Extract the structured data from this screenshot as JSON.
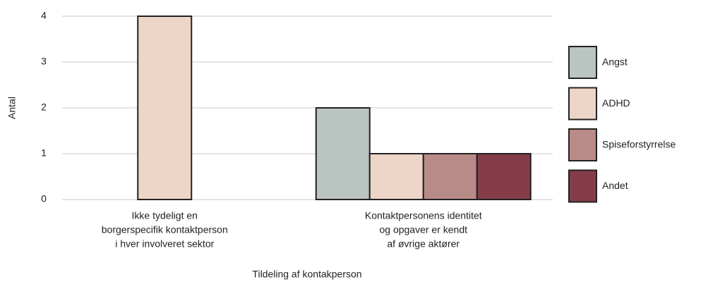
{
  "chart_data": {
    "type": "bar",
    "categories": [
      [
        "Ikke tydeligt en",
        "borgerspecifik kontaktperson",
        "i hver involveret sektor"
      ],
      [
        "Kontaktpersonens identitet",
        "og opgaver er kendt",
        "af øvrige aktører"
      ]
    ],
    "series": [
      {
        "name": "Angst",
        "color": "#bac5c1",
        "values": [
          null,
          2
        ]
      },
      {
        "name": "ADHD",
        "color": "#edd5c8",
        "values": [
          4,
          1
        ]
      },
      {
        "name": "Spiseforstyrrelse",
        "color": "#b98b88",
        "values": [
          null,
          1
        ]
      },
      {
        "name": "Andet",
        "color": "#843d48",
        "values": [
          null,
          1
        ]
      }
    ],
    "ylim": [
      0,
      4
    ],
    "yticks": [
      0,
      1,
      2,
      3,
      4
    ],
    "grid": true,
    "y_label": "Antal",
    "x_label": "Tildeling af kontakperson",
    "legend": "right"
  }
}
